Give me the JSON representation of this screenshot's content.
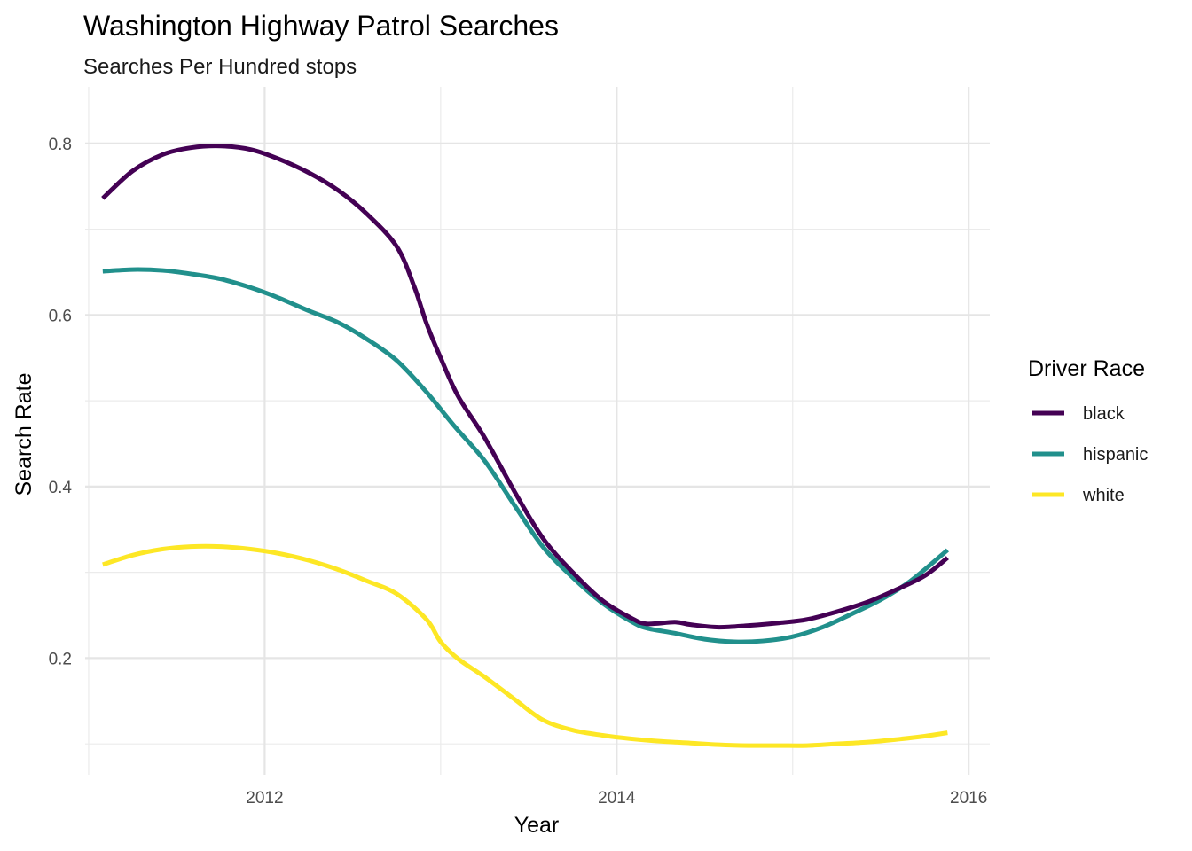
{
  "chart_data": {
    "type": "line",
    "title": "Washington Highway Patrol Searches",
    "subtitle": "Searches Per Hundred stops",
    "xlabel": "Year",
    "ylabel": "Search Rate",
    "xlim": [
      2010.98,
      2016.12
    ],
    "ylim": [
      0.064,
      0.866
    ],
    "x_ticks": [
      2012,
      2014,
      2016
    ],
    "x_tick_labels": [
      "2012",
      "2014",
      "2016"
    ],
    "y_ticks": [
      0.2,
      0.4,
      0.6,
      0.8
    ],
    "y_tick_labels": [
      "0.2",
      "0.4",
      "0.6",
      "0.8"
    ],
    "grid": true,
    "legend": {
      "title": "Driver Race",
      "position": "right"
    },
    "series": [
      {
        "name": "black",
        "color": "#440154",
        "points": [
          [
            2011.08,
            0.736
          ],
          [
            2011.25,
            0.768
          ],
          [
            2011.42,
            0.787
          ],
          [
            2011.58,
            0.795
          ],
          [
            2011.75,
            0.797
          ],
          [
            2011.92,
            0.793
          ],
          [
            2012.08,
            0.782
          ],
          [
            2012.25,
            0.766
          ],
          [
            2012.42,
            0.745
          ],
          [
            2012.58,
            0.718
          ],
          [
            2012.75,
            0.68
          ],
          [
            2012.85,
            0.633
          ],
          [
            2012.92,
            0.59
          ],
          [
            2013.0,
            0.55
          ],
          [
            2013.1,
            0.505
          ],
          [
            2013.25,
            0.457
          ],
          [
            2013.42,
            0.394
          ],
          [
            2013.58,
            0.34
          ],
          [
            2013.75,
            0.3
          ],
          [
            2013.92,
            0.267
          ],
          [
            2014.08,
            0.247
          ],
          [
            2014.17,
            0.24
          ],
          [
            2014.33,
            0.242
          ],
          [
            2014.42,
            0.239
          ],
          [
            2014.58,
            0.236
          ],
          [
            2014.75,
            0.238
          ],
          [
            2014.92,
            0.241
          ],
          [
            2015.08,
            0.245
          ],
          [
            2015.25,
            0.254
          ],
          [
            2015.42,
            0.265
          ],
          [
            2015.58,
            0.279
          ],
          [
            2015.75,
            0.296
          ],
          [
            2015.88,
            0.317
          ]
        ]
      },
      {
        "name": "hispanic",
        "color": "#21908C",
        "points": [
          [
            2011.08,
            0.651
          ],
          [
            2011.25,
            0.653
          ],
          [
            2011.42,
            0.652
          ],
          [
            2011.58,
            0.648
          ],
          [
            2011.75,
            0.642
          ],
          [
            2011.92,
            0.632
          ],
          [
            2012.08,
            0.62
          ],
          [
            2012.25,
            0.605
          ],
          [
            2012.42,
            0.591
          ],
          [
            2012.58,
            0.572
          ],
          [
            2012.75,
            0.547
          ],
          [
            2012.92,
            0.51
          ],
          [
            2013.08,
            0.47
          ],
          [
            2013.25,
            0.43
          ],
          [
            2013.42,
            0.378
          ],
          [
            2013.58,
            0.33
          ],
          [
            2013.75,
            0.294
          ],
          [
            2013.92,
            0.264
          ],
          [
            2014.08,
            0.243
          ],
          [
            2014.17,
            0.235
          ],
          [
            2014.33,
            0.229
          ],
          [
            2014.5,
            0.222
          ],
          [
            2014.67,
            0.219
          ],
          [
            2014.83,
            0.22
          ],
          [
            2015.0,
            0.225
          ],
          [
            2015.17,
            0.236
          ],
          [
            2015.33,
            0.251
          ],
          [
            2015.5,
            0.268
          ],
          [
            2015.67,
            0.29
          ],
          [
            2015.88,
            0.326
          ]
        ]
      },
      {
        "name": "white",
        "color": "#FDE725",
        "points": [
          [
            2011.08,
            0.309
          ],
          [
            2011.25,
            0.32
          ],
          [
            2011.42,
            0.327
          ],
          [
            2011.58,
            0.33
          ],
          [
            2011.75,
            0.33
          ],
          [
            2011.92,
            0.327
          ],
          [
            2012.08,
            0.322
          ],
          [
            2012.25,
            0.314
          ],
          [
            2012.42,
            0.303
          ],
          [
            2012.58,
            0.29
          ],
          [
            2012.75,
            0.275
          ],
          [
            2012.92,
            0.245
          ],
          [
            2013.0,
            0.219
          ],
          [
            2013.1,
            0.199
          ],
          [
            2013.25,
            0.178
          ],
          [
            2013.42,
            0.152
          ],
          [
            2013.58,
            0.128
          ],
          [
            2013.75,
            0.116
          ],
          [
            2013.92,
            0.11
          ],
          [
            2014.08,
            0.106
          ],
          [
            2014.25,
            0.103
          ],
          [
            2014.42,
            0.101
          ],
          [
            2014.58,
            0.099
          ],
          [
            2014.75,
            0.098
          ],
          [
            2014.92,
            0.098
          ],
          [
            2015.08,
            0.098
          ],
          [
            2015.25,
            0.1
          ],
          [
            2015.42,
            0.102
          ],
          [
            2015.58,
            0.105
          ],
          [
            2015.75,
            0.109
          ],
          [
            2015.88,
            0.113
          ]
        ]
      }
    ]
  }
}
